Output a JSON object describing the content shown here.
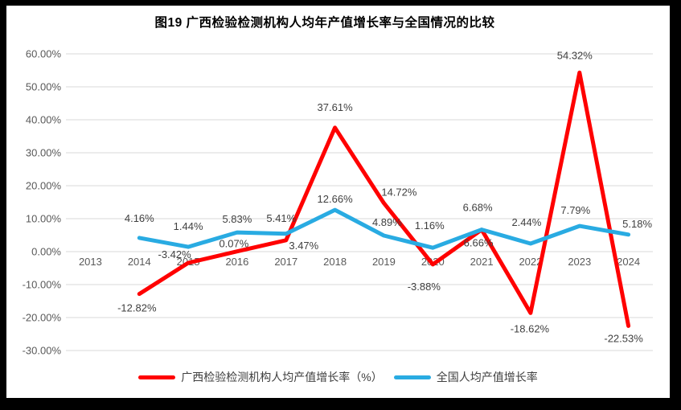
{
  "title": "图19 广西检验检测机构人均年产值增长率与全国情况的比较",
  "colors": {
    "guangxi_line": "#FF0000",
    "national_line": "#29ABE2",
    "gridline": "#D9D9D9",
    "axis_text": "#595959",
    "data_label_text": "#404040",
    "title_text": "#000000",
    "canvas_bg": "#FFFFFF",
    "frame_bg": "#000000"
  },
  "legend": {
    "items": [
      {
        "id": "guangxi",
        "label": "广西检验检测机构人均产值增长率（%）",
        "color": "#FF0000"
      },
      {
        "id": "national",
        "label": "全国人均产值增长率",
        "color": "#29ABE2"
      }
    ]
  },
  "chart_data": {
    "type": "line",
    "title": "图19 广西检验检测机构人均年产值增长率与全国情况的比较",
    "categories": [
      "2013",
      "2014",
      "2015",
      "2016",
      "2017",
      "2018",
      "2019",
      "2020",
      "2021",
      "2022",
      "2023",
      "2024"
    ],
    "series": [
      {
        "id": "guangxi",
        "name": "广西检验检测机构人均产值增长率（%）",
        "color": "#FF0000",
        "values": [
          null,
          -12.82,
          -3.42,
          0.07,
          3.47,
          37.61,
          14.72,
          -3.88,
          6.66,
          -18.62,
          54.32,
          -22.53
        ],
        "labels": [
          "",
          "-12.82%",
          "-3.42%",
          "0.07%",
          "3.47%",
          "37.61%",
          "14.72%",
          "-3.88%",
          "6.66%",
          "-18.62%",
          "54.32%",
          "-22.53%"
        ]
      },
      {
        "id": "national",
        "name": "全国人均产值增长率",
        "color": "#29ABE2",
        "values": [
          null,
          4.16,
          1.44,
          5.83,
          5.41,
          12.66,
          4.89,
          1.16,
          6.68,
          2.44,
          7.79,
          5.18
        ],
        "labels": [
          "",
          "4.16%",
          "1.44%",
          "5.83%",
          "5.41%",
          "12.66%",
          "4.89%",
          "1.16%",
          "6.68%",
          "2.44%",
          "7.79%",
          "5.18%"
        ]
      }
    ],
    "xlabel": "",
    "ylabel": "",
    "ylim": [
      -30,
      60
    ],
    "ytick_step": 10,
    "ytick_labels": [
      "60.00%",
      "50.00%",
      "40.00%",
      "30.00%",
      "20.00%",
      "10.00%",
      "0.00%",
      "-10.00%",
      "-20.00%",
      "-30.00%"
    ],
    "grid": true,
    "legend_position": "bottom"
  }
}
